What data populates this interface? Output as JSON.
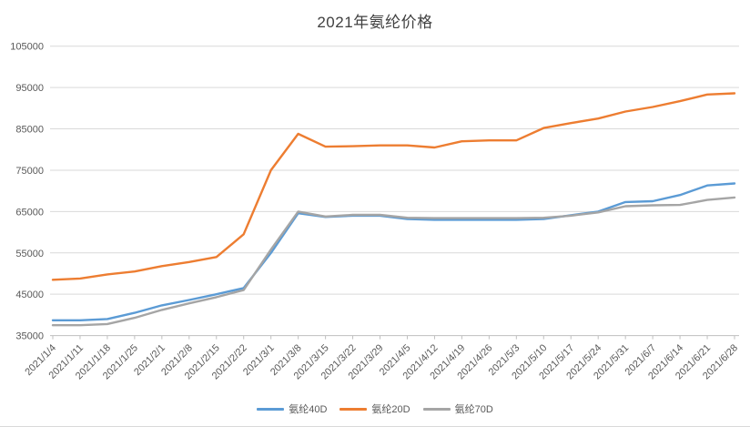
{
  "title": "2021年氨纶价格",
  "colors": {
    "series_blue": "#5B9BD5",
    "series_orange": "#ED7D31",
    "series_gray": "#A5A5A5",
    "gridline": "#D9D9D9",
    "axis_line": "#BFBFBF",
    "axis_text": "#595959",
    "title_text": "#404040"
  },
  "chart_data": {
    "type": "line",
    "title": "2021年氨纶价格",
    "xlabel": "",
    "ylabel": "",
    "ylim": [
      35000,
      105000
    ],
    "ytick_step": 10000,
    "grid": true,
    "legend_position": "bottom",
    "categories": [
      "2021/1/4",
      "2021/1/11",
      "2021/1/18",
      "2021/1/25",
      "2021/2/1",
      "2021/2/8",
      "2021/2/15",
      "2021/2/22",
      "2021/3/1",
      "2021/3/8",
      "2021/3/15",
      "2021/3/22",
      "2021/3/29",
      "2021/4/5",
      "2021/4/12",
      "2021/4/19",
      "2021/4/26",
      "2021/5/3",
      "2021/5/10",
      "2021/5/17",
      "2021/5/24",
      "2021/5/31",
      "2021/6/7",
      "2021/6/14",
      "2021/6/21",
      "2021/6/28"
    ],
    "series": [
      {
        "name": "氨纶40D",
        "color": "#5B9BD5",
        "values": [
          38700,
          38700,
          39000,
          40500,
          42300,
          43600,
          45000,
          46500,
          55000,
          64600,
          63700,
          64000,
          64000,
          63200,
          63000,
          63000,
          63000,
          63000,
          63200,
          64100,
          65000,
          67300,
          67500,
          69000,
          71300,
          71800
        ]
      },
      {
        "name": "氨纶20D",
        "color": "#ED7D31",
        "values": [
          48500,
          48800,
          49800,
          50500,
          51800,
          52800,
          54000,
          59500,
          75000,
          83800,
          80700,
          80800,
          81000,
          81000,
          80500,
          82000,
          82200,
          82200,
          85200,
          86400,
          87500,
          89200,
          90300,
          91700,
          93300,
          93600
        ]
      },
      {
        "name": "氨纶70D",
        "color": "#A5A5A5",
        "values": [
          37500,
          37500,
          37800,
          39300,
          41200,
          42800,
          44300,
          46000,
          55800,
          65000,
          63800,
          64200,
          64200,
          63500,
          63400,
          63400,
          63400,
          63400,
          63500,
          64000,
          64800,
          66300,
          66500,
          66600,
          67800,
          68400
        ]
      }
    ]
  }
}
